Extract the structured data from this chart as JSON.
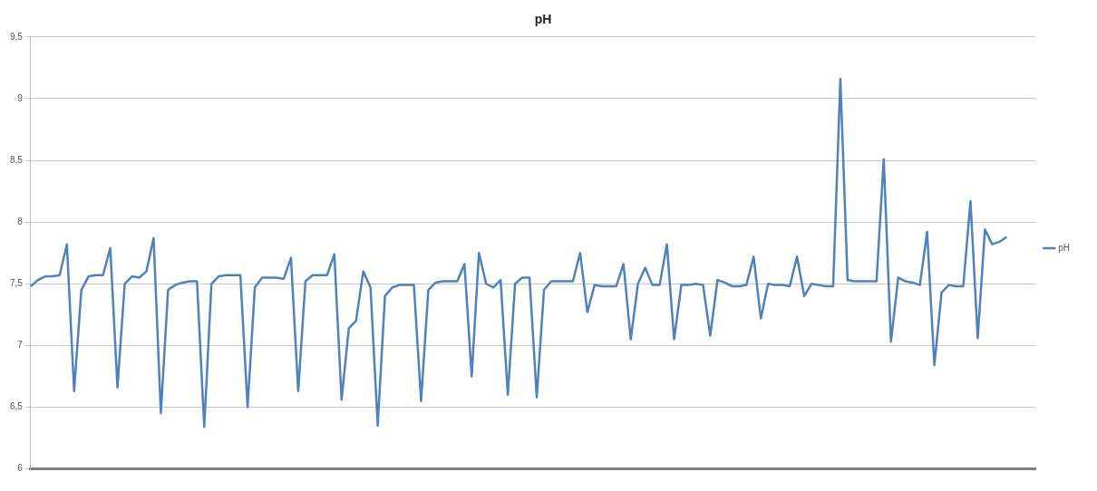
{
  "chart_data": {
    "type": "line",
    "title": "pH",
    "categories": [
      null,
      null,
      null,
      null,
      null,
      null,
      null,
      null,
      null,
      null,
      null,
      null,
      null,
      null,
      null,
      null,
      null,
      null,
      null,
      null,
      null,
      null,
      null,
      null,
      null,
      null,
      null,
      null,
      null,
      null,
      null,
      null,
      null,
      null,
      null,
      null,
      null,
      null,
      null,
      null,
      null,
      null,
      null,
      null,
      null,
      null,
      null,
      null,
      null,
      null,
      null,
      null,
      null,
      null,
      null,
      null,
      null,
      null,
      null,
      null,
      null,
      null,
      null,
      null,
      null,
      null,
      null,
      null,
      null,
      null,
      null,
      null,
      null,
      null,
      null,
      null,
      null,
      null,
      null,
      null,
      null,
      null,
      null,
      null,
      null,
      null,
      null,
      null,
      null,
      null,
      null,
      null,
      null,
      null,
      null,
      null,
      null,
      null,
      null,
      null,
      null,
      null,
      null,
      null,
      null,
      null,
      null,
      null,
      null,
      null,
      null,
      null,
      null,
      null,
      null,
      null,
      null,
      null,
      null,
      null,
      null,
      null,
      null,
      null,
      null,
      null,
      null,
      null,
      null,
      null,
      null,
      null,
      null,
      null,
      null,
      null,
      null,
      null,
      null,
      null
    ],
    "series": [
      {
        "name": "pH",
        "color": "#4f81bd",
        "values": [
          7.48,
          7.53,
          7.56,
          7.56,
          7.57,
          7.82,
          6.63,
          7.45,
          7.56,
          7.57,
          7.57,
          7.79,
          6.66,
          7.5,
          7.56,
          7.55,
          7.6,
          7.87,
          6.45,
          7.45,
          7.49,
          7.51,
          7.52,
          7.52,
          6.34,
          7.5,
          7.56,
          7.57,
          7.57,
          7.57,
          6.5,
          7.47,
          7.55,
          7.55,
          7.55,
          7.54,
          7.71,
          6.63,
          7.52,
          7.57,
          7.57,
          7.57,
          7.74,
          6.56,
          7.14,
          7.2,
          7.6,
          7.47,
          6.35,
          7.4,
          7.47,
          7.49,
          7.49,
          7.49,
          6.55,
          7.45,
          7.51,
          7.52,
          7.52,
          7.52,
          7.66,
          6.75,
          7.75,
          7.5,
          7.47,
          7.53,
          6.6,
          7.5,
          7.55,
          7.55,
          6.58,
          7.45,
          7.52,
          7.52,
          7.52,
          7.52,
          7.75,
          7.27,
          7.49,
          7.48,
          7.48,
          7.48,
          7.66,
          7.05,
          7.5,
          7.63,
          7.49,
          7.49,
          7.82,
          7.05,
          7.49,
          7.49,
          7.5,
          7.49,
          7.08,
          7.53,
          7.51,
          7.48,
          7.48,
          7.49,
          7.72,
          7.22,
          7.5,
          7.49,
          7.49,
          7.48,
          7.72,
          7.4,
          7.5,
          7.49,
          7.48,
          7.48,
          9.16,
          7.53,
          7.52,
          7.52,
          7.52,
          7.52,
          8.51,
          7.03,
          7.55,
          7.52,
          7.51,
          7.49,
          7.92,
          6.84,
          7.43,
          7.49,
          7.48,
          7.48,
          8.17,
          7.06,
          7.94,
          7.82,
          7.84,
          7.88,
          null,
          null,
          null,
          null
        ]
      }
    ],
    "ylim": [
      6,
      9.5
    ],
    "yticks": [
      6,
      {
        "value": 6.5,
        "label": "6,5"
      },
      7,
      {
        "value": 7.5,
        "label": "7,5"
      },
      8,
      {
        "value": 8.5,
        "label": "8,5"
      },
      9,
      {
        "value": 9.5,
        "label": "9,5"
      }
    ],
    "grid": "y",
    "legend": "right",
    "marker": "none",
    "line_style": "solid"
  }
}
